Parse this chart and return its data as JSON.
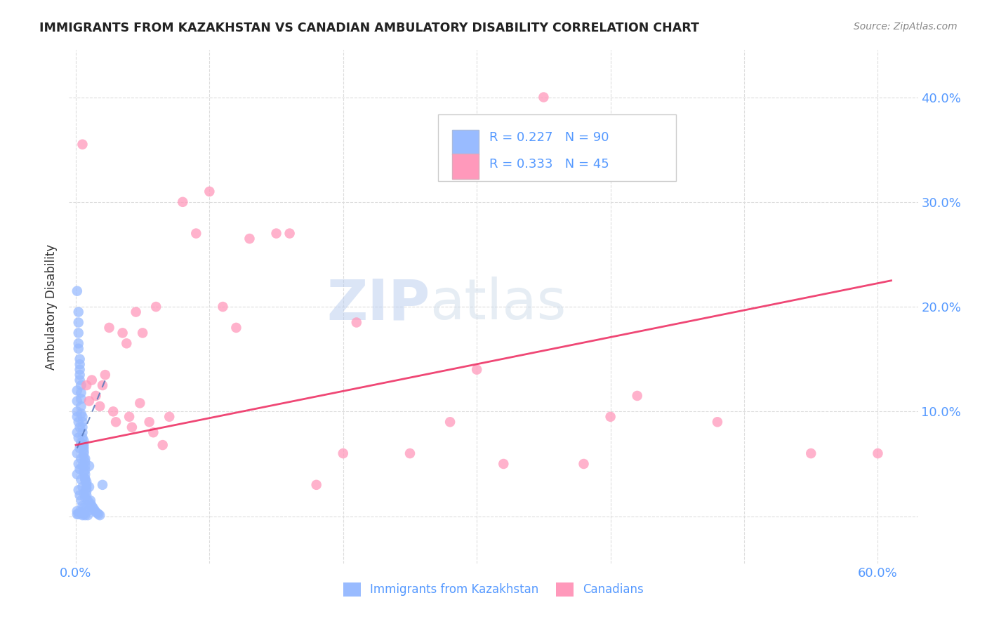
{
  "title": "IMMIGRANTS FROM KAZAKHSTAN VS CANADIAN AMBULATORY DISABILITY CORRELATION CHART",
  "source": "Source: ZipAtlas.com",
  "tick_color": "#5599ff",
  "ylabel": "Ambulatory Disability",
  "xlim": [
    -0.005,
    0.63
  ],
  "ylim": [
    -0.045,
    0.445
  ],
  "blue_R": 0.227,
  "blue_N": 90,
  "pink_R": 0.333,
  "pink_N": 45,
  "blue_color": "#99bbff",
  "pink_color": "#ff99bb",
  "blue_edge_color": "#6688cc",
  "pink_edge_color": "#cc5577",
  "blue_line_color": "#5577bb",
  "pink_line_color": "#ee3366",
  "watermark_zip": "ZIP",
  "watermark_atlas": "atlas",
  "legend_blue_label": "Immigrants from Kazakhstan",
  "legend_pink_label": "Canadians",
  "blue_scatter_x": [
    0.001,
    0.001,
    0.001,
    0.001,
    0.001,
    0.001,
    0.001,
    0.001,
    0.001,
    0.001,
    0.002,
    0.002,
    0.002,
    0.002,
    0.002,
    0.002,
    0.002,
    0.002,
    0.002,
    0.002,
    0.003,
    0.003,
    0.003,
    0.003,
    0.003,
    0.003,
    0.003,
    0.003,
    0.003,
    0.003,
    0.004,
    0.004,
    0.004,
    0.004,
    0.004,
    0.004,
    0.004,
    0.004,
    0.004,
    0.004,
    0.005,
    0.005,
    0.005,
    0.005,
    0.005,
    0.005,
    0.005,
    0.005,
    0.005,
    0.005,
    0.006,
    0.006,
    0.006,
    0.006,
    0.006,
    0.006,
    0.006,
    0.006,
    0.006,
    0.006,
    0.007,
    0.007,
    0.007,
    0.007,
    0.007,
    0.007,
    0.007,
    0.007,
    0.007,
    0.007,
    0.008,
    0.008,
    0.008,
    0.008,
    0.008,
    0.009,
    0.009,
    0.009,
    0.01,
    0.01,
    0.011,
    0.011,
    0.012,
    0.013,
    0.014,
    0.015,
    0.016,
    0.017,
    0.018,
    0.02
  ],
  "blue_scatter_y": [
    0.215,
    0.005,
    0.04,
    0.06,
    0.08,
    0.095,
    0.1,
    0.11,
    0.12,
    0.002,
    0.195,
    0.185,
    0.175,
    0.165,
    0.16,
    0.002,
    0.025,
    0.05,
    0.075,
    0.09,
    0.15,
    0.145,
    0.14,
    0.135,
    0.13,
    0.004,
    0.02,
    0.045,
    0.065,
    0.085,
    0.125,
    0.118,
    0.112,
    0.105,
    0.098,
    0.003,
    0.015,
    0.035,
    0.055,
    0.07,
    0.095,
    0.09,
    0.085,
    0.08,
    0.075,
    0.001,
    0.01,
    0.028,
    0.048,
    0.068,
    0.072,
    0.068,
    0.065,
    0.06,
    0.056,
    0.002,
    0.008,
    0.022,
    0.042,
    0.062,
    0.052,
    0.048,
    0.044,
    0.04,
    0.036,
    0.001,
    0.006,
    0.018,
    0.035,
    0.055,
    0.033,
    0.03,
    0.027,
    0.024,
    0.02,
    0.001,
    0.005,
    0.015,
    0.028,
    0.048,
    0.015,
    0.012,
    0.01,
    0.008,
    0.006,
    0.004,
    0.003,
    0.002,
    0.001,
    0.03
  ],
  "pink_scatter_x": [
    0.005,
    0.008,
    0.01,
    0.012,
    0.015,
    0.018,
    0.02,
    0.022,
    0.025,
    0.028,
    0.03,
    0.035,
    0.038,
    0.04,
    0.042,
    0.045,
    0.048,
    0.05,
    0.055,
    0.058,
    0.06,
    0.065,
    0.07,
    0.08,
    0.09,
    0.1,
    0.11,
    0.12,
    0.13,
    0.15,
    0.16,
    0.18,
    0.2,
    0.21,
    0.25,
    0.28,
    0.3,
    0.32,
    0.35,
    0.38,
    0.4,
    0.42,
    0.48,
    0.55,
    0.6
  ],
  "pink_scatter_y": [
    0.355,
    0.125,
    0.11,
    0.13,
    0.115,
    0.105,
    0.125,
    0.135,
    0.18,
    0.1,
    0.09,
    0.175,
    0.165,
    0.095,
    0.085,
    0.195,
    0.108,
    0.175,
    0.09,
    0.08,
    0.2,
    0.068,
    0.095,
    0.3,
    0.27,
    0.31,
    0.2,
    0.18,
    0.265,
    0.27,
    0.27,
    0.03,
    0.06,
    0.185,
    0.06,
    0.09,
    0.14,
    0.05,
    0.4,
    0.05,
    0.095,
    0.115,
    0.09,
    0.06,
    0.06
  ],
  "blue_trend_x": [
    0.001,
    0.022
  ],
  "blue_trend_y": [
    0.065,
    0.13
  ],
  "pink_trend_x": [
    0.0,
    0.61
  ],
  "pink_trend_y": [
    0.068,
    0.225
  ],
  "grid_color": "#dddddd",
  "x_tick_vals": [
    0.0,
    0.1,
    0.2,
    0.3,
    0.4,
    0.5,
    0.6
  ],
  "y_tick_vals": [
    0.0,
    0.1,
    0.2,
    0.3,
    0.4
  ]
}
